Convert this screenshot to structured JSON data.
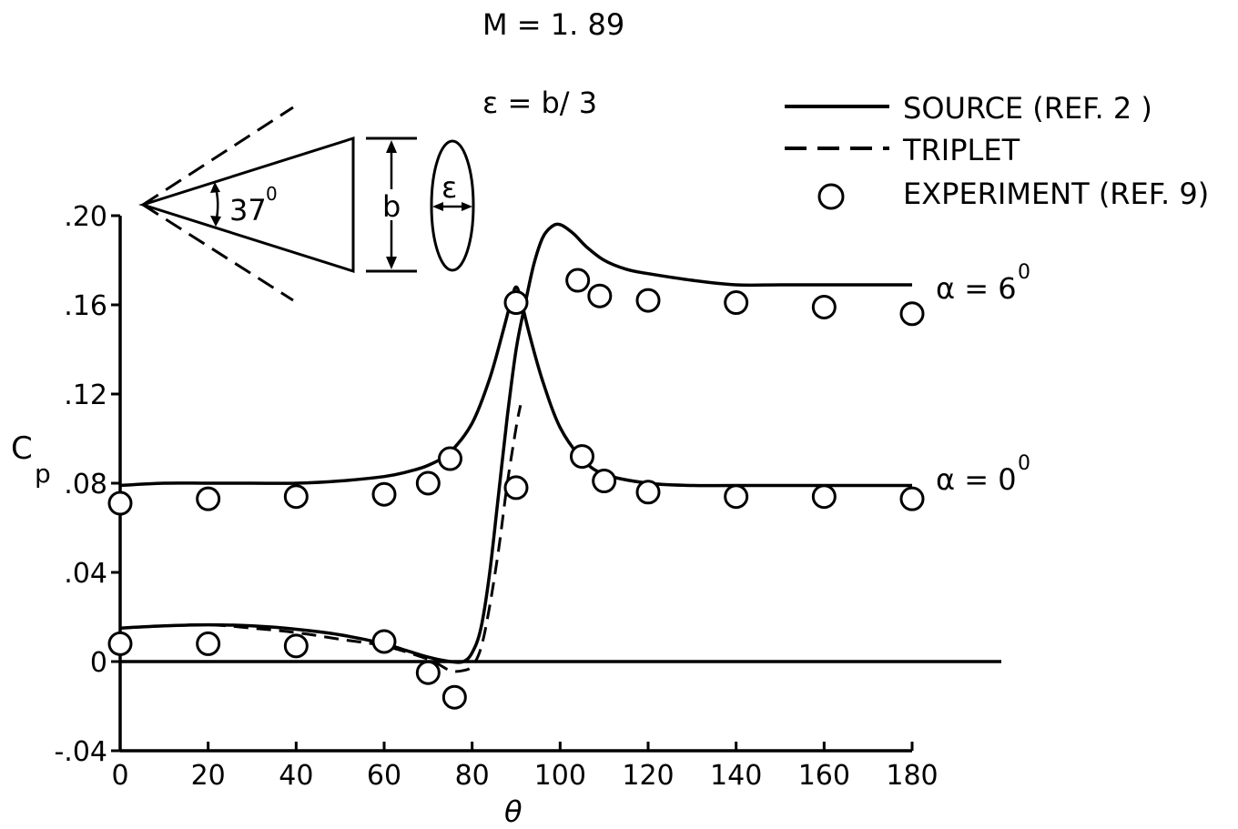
{
  "chart_data": {
    "type": "line",
    "conditions": {
      "mach": "M = 1. 89",
      "epsilon": "ε = b/ 3"
    },
    "xlabel": "θ",
    "ylabel_main": "C",
    "ylabel_sub": "p",
    "xlim": [
      0,
      180
    ],
    "ylim": [
      -0.04,
      0.2
    ],
    "x_ticks": [
      "0",
      "20",
      "40",
      "60",
      "80",
      "100",
      "120",
      "140",
      "160",
      "180"
    ],
    "y_ticks": [
      {
        "value": 0.2,
        "label": ".20"
      },
      {
        "value": 0.16,
        "label": ".16"
      },
      {
        "value": 0.12,
        "label": ".12"
      },
      {
        "value": 0.08,
        "label": ".08"
      },
      {
        "value": 0.04,
        "label": ".04"
      },
      {
        "value": 0.0,
        "label": "0"
      },
      {
        "value": -0.04,
        "label": "-.04"
      }
    ],
    "legend": {
      "placement": "top-right",
      "entries": [
        {
          "key": "source",
          "label": "SOURCE (REF. 2 )",
          "style": "solid"
        },
        {
          "key": "triplet",
          "label": "TRIPLET",
          "style": "dashed"
        },
        {
          "key": "experiment",
          "label": "EXPERIMENT (REF.  9)",
          "style": "circle"
        }
      ]
    },
    "curve_labels": {
      "alpha6": {
        "text": "α = 6",
        "sup": "0"
      },
      "alpha0": {
        "text": "α = 0",
        "sup": "0"
      }
    },
    "inset": {
      "angle_label": "37",
      "angle_sup": "0",
      "span_label": "b",
      "thickness_label": "ε"
    },
    "series": [
      {
        "key": "source_alpha6",
        "style": "solid",
        "x": [
          0,
          10,
          20,
          30,
          40,
          50,
          60,
          65,
          70,
          75,
          78,
          80,
          82,
          84,
          86,
          88,
          90,
          92,
          94,
          96,
          98,
          100,
          103,
          106,
          110,
          115,
          120,
          130,
          140,
          150,
          160,
          170,
          180
        ],
        "y": [
          0.015,
          0.016,
          0.0165,
          0.016,
          0.0145,
          0.012,
          0.008,
          0.005,
          0.002,
          0.0,
          0.0,
          0.004,
          0.015,
          0.04,
          0.075,
          0.11,
          0.14,
          0.16,
          0.178,
          0.19,
          0.195,
          0.196,
          0.192,
          0.186,
          0.18,
          0.176,
          0.174,
          0.171,
          0.169,
          0.169,
          0.169,
          0.169,
          0.169
        ]
      },
      {
        "key": "source_alpha0",
        "style": "solid",
        "x": [
          0,
          10,
          20,
          30,
          40,
          50,
          60,
          65,
          70,
          75,
          80,
          84,
          87,
          89,
          90,
          91,
          93,
          96,
          100,
          105,
          110,
          120,
          130,
          140,
          160,
          180
        ],
        "y": [
          0.079,
          0.08,
          0.08,
          0.08,
          0.08,
          0.081,
          0.083,
          0.085,
          0.088,
          0.094,
          0.107,
          0.127,
          0.148,
          0.163,
          0.168,
          0.163,
          0.147,
          0.126,
          0.105,
          0.091,
          0.084,
          0.08,
          0.079,
          0.079,
          0.079,
          0.079
        ]
      },
      {
        "key": "triplet_alpha6",
        "style": "dashed",
        "x": [
          0,
          10,
          20,
          30,
          40,
          50,
          60,
          70,
          75,
          78,
          80,
          82,
          84,
          86,
          88,
          90,
          91
        ],
        "y": [
          0.015,
          0.016,
          0.0165,
          0.015,
          0.013,
          0.01,
          0.007,
          0.001,
          -0.004,
          -0.004,
          -0.002,
          0.006,
          0.025,
          0.05,
          0.08,
          0.105,
          0.115
        ]
      }
    ],
    "experiment": [
      {
        "x": 0,
        "y": 0.071
      },
      {
        "x": 20,
        "y": 0.073
      },
      {
        "x": 40,
        "y": 0.074
      },
      {
        "x": 60,
        "y": 0.075
      },
      {
        "x": 70,
        "y": 0.08
      },
      {
        "x": 75,
        "y": 0.091
      },
      {
        "x": 90,
        "y": 0.078
      },
      {
        "x": 90,
        "y": 0.161
      },
      {
        "x": 105,
        "y": 0.092
      },
      {
        "x": 110,
        "y": 0.081
      },
      {
        "x": 120,
        "y": 0.076
      },
      {
        "x": 140,
        "y": 0.074
      },
      {
        "x": 160,
        "y": 0.074
      },
      {
        "x": 180,
        "y": 0.073
      },
      {
        "x": 104,
        "y": 0.171
      },
      {
        "x": 109,
        "y": 0.164
      },
      {
        "x": 120,
        "y": 0.162
      },
      {
        "x": 140,
        "y": 0.161
      },
      {
        "x": 160,
        "y": 0.159
      },
      {
        "x": 180,
        "y": 0.156
      },
      {
        "x": 0,
        "y": 0.008
      },
      {
        "x": 20,
        "y": 0.008
      },
      {
        "x": 40,
        "y": 0.007
      },
      {
        "x": 60,
        "y": 0.009
      },
      {
        "x": 70,
        "y": -0.005
      },
      {
        "x": 76,
        "y": -0.016
      }
    ]
  }
}
